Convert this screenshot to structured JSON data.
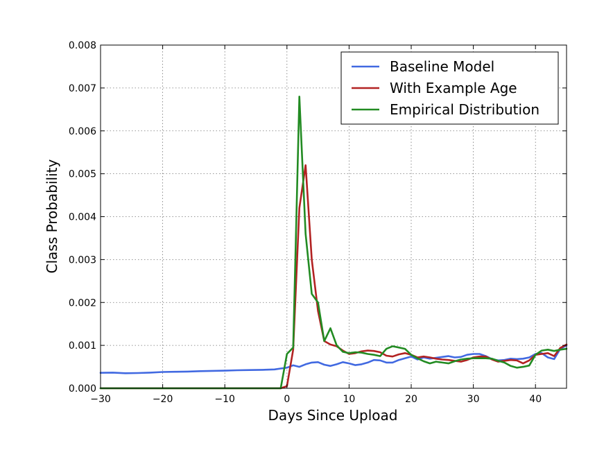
{
  "chart_data": {
    "type": "line",
    "title": "",
    "xlabel": "Days Since Upload",
    "ylabel": "Class Probability",
    "xlim": [
      -30,
      45
    ],
    "ylim": [
      0,
      0.008
    ],
    "xticks": [
      -30,
      -20,
      -10,
      0,
      10,
      20,
      30,
      40
    ],
    "xtick_labels": [
      "−30",
      "−20",
      "−10",
      "0",
      "10",
      "20",
      "30",
      "40"
    ],
    "yticks": [
      0,
      0.001,
      0.002,
      0.003,
      0.004,
      0.005,
      0.006,
      0.007,
      0.008
    ],
    "ytick_labels": [
      "0.000",
      "0.001",
      "0.002",
      "0.003",
      "0.004",
      "0.005",
      "0.006",
      "0.007",
      "0.008"
    ],
    "grid": true,
    "legend_position": "top-right",
    "series": [
      {
        "name": "Baseline Model",
        "color": "#4169e1",
        "x": [
          -30,
          -28,
          -26,
          -24,
          -22,
          -20,
          -18,
          -16,
          -14,
          -12,
          -10,
          -8,
          -6,
          -4,
          -2,
          -1,
          0,
          1,
          2,
          3,
          4,
          5,
          6,
          7,
          8,
          9,
          10,
          11,
          12,
          13,
          14,
          15,
          16,
          17,
          18,
          19,
          20,
          21,
          22,
          23,
          24,
          25,
          26,
          27,
          28,
          29,
          30,
          31,
          32,
          33,
          34,
          35,
          36,
          37,
          38,
          39,
          40,
          41,
          42,
          43,
          44,
          45
        ],
        "y": [
          0.00036,
          0.000365,
          0.00035,
          0.000355,
          0.000365,
          0.00038,
          0.000385,
          0.00039,
          0.0004,
          0.000405,
          0.00041,
          0.00042,
          0.000425,
          0.00043,
          0.00044,
          0.00046,
          0.00048,
          0.000535,
          0.0005,
          0.00056,
          0.0006,
          0.00061,
          0.00055,
          0.00052,
          0.00056,
          0.00061,
          0.00058,
          0.00054,
          0.00056,
          0.0006,
          0.00066,
          0.00065,
          0.0006,
          0.0006,
          0.00066,
          0.0007,
          0.00074,
          0.00067,
          0.00072,
          0.00069,
          0.00071,
          0.00073,
          0.00075,
          0.00072,
          0.00073,
          0.00078,
          0.0008,
          0.0008,
          0.00075,
          0.00068,
          0.00065,
          0.00066,
          0.00069,
          0.00068,
          0.00069,
          0.00072,
          0.0008,
          0.00082,
          0.00072,
          0.00068,
          0.00092,
          0.001
        ]
      },
      {
        "name": "With Example Age",
        "color": "#b22222",
        "x": [
          -30,
          -5,
          -1,
          0,
          1,
          2,
          3,
          4,
          5,
          6,
          7,
          8,
          9,
          10,
          11,
          12,
          13,
          14,
          15,
          16,
          17,
          18,
          19,
          20,
          21,
          22,
          23,
          24,
          25,
          26,
          27,
          28,
          29,
          30,
          31,
          32,
          33,
          34,
          35,
          36,
          37,
          38,
          39,
          40,
          41,
          42,
          43,
          44,
          45
        ],
        "y": [
          0,
          0,
          0,
          5e-05,
          0.0009,
          0.0042,
          0.0052,
          0.003,
          0.0018,
          0.0011,
          0.00102,
          0.00098,
          0.00088,
          0.0008,
          0.00082,
          0.00086,
          0.00088,
          0.00087,
          0.00084,
          0.00076,
          0.00074,
          0.00079,
          0.00082,
          0.00078,
          0.00072,
          0.00074,
          0.00072,
          0.00069,
          0.00067,
          0.00066,
          0.00064,
          0.00062,
          0.00066,
          0.00072,
          0.00074,
          0.00074,
          0.00067,
          0.00062,
          0.00064,
          0.00066,
          0.00065,
          0.00058,
          0.00065,
          0.00078,
          0.0008,
          0.00082,
          0.00075,
          0.00094,
          0.00102
        ]
      },
      {
        "name": "Empirical Distribution",
        "color": "#228b22",
        "x": [
          -30,
          -5,
          -1,
          0,
          1,
          2,
          3,
          4,
          5,
          6,
          7,
          8,
          9,
          10,
          11,
          12,
          13,
          14,
          15,
          16,
          17,
          18,
          19,
          20,
          21,
          22,
          23,
          24,
          25,
          26,
          27,
          28,
          29,
          30,
          31,
          32,
          33,
          34,
          35,
          36,
          37,
          38,
          39,
          40,
          41,
          42,
          43,
          44,
          45
        ],
        "y": [
          0,
          0,
          0,
          0.0008,
          0.00095,
          0.0068,
          0.0036,
          0.0022,
          0.002,
          0.0011,
          0.0014,
          0.001,
          0.00085,
          0.00082,
          0.00084,
          0.00083,
          0.0008,
          0.00078,
          0.00075,
          0.00092,
          0.00098,
          0.00095,
          0.00092,
          0.00078,
          0.0007,
          0.00063,
          0.00058,
          0.00062,
          0.0006,
          0.00058,
          0.00063,
          0.00067,
          0.00069,
          0.0007,
          0.0007,
          0.0007,
          0.00069,
          0.00064,
          0.0006,
          0.00052,
          0.00048,
          0.0005,
          0.00053,
          0.00078,
          0.00088,
          0.0009,
          0.00087,
          0.0009,
          0.00092
        ]
      }
    ]
  }
}
